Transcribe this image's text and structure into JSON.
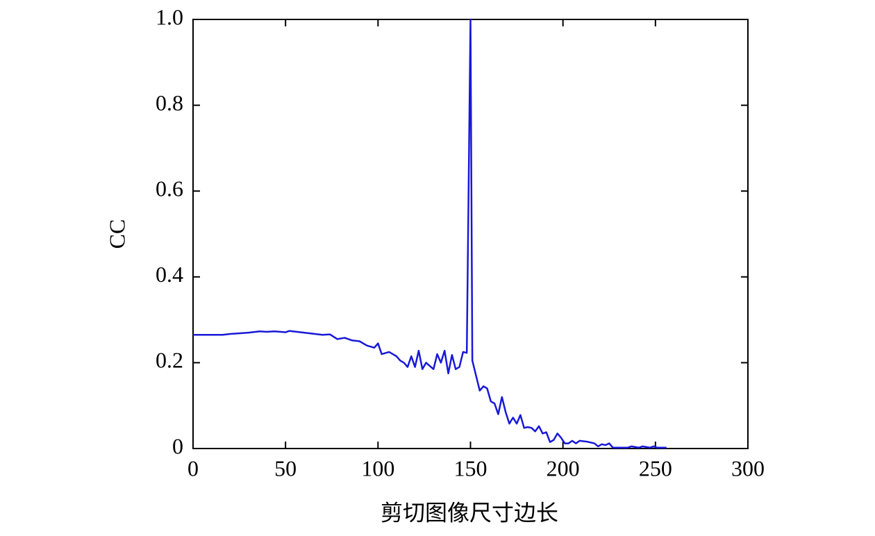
{
  "chart_data": {
    "type": "line",
    "x_label": "剪切图像尺寸边长",
    "y_label": "CC",
    "xlim": [
      0,
      300
    ],
    "xticks": [
      0,
      50,
      100,
      150,
      200,
      250,
      300
    ],
    "ylim": [
      0,
      1
    ],
    "yticks": [
      0,
      0.2,
      0.4,
      0.6,
      0.8,
      {
        "value": 1,
        "label": "1.0"
      }
    ],
    "x": [
      0,
      8,
      16,
      20,
      30,
      36,
      40,
      44,
      50,
      52,
      60,
      70,
      74,
      78,
      82,
      86,
      90,
      94,
      98,
      100,
      102,
      106,
      110,
      112,
      114,
      116,
      118,
      120,
      122,
      124,
      126,
      130,
      132,
      134,
      136,
      138,
      140,
      142,
      144,
      146,
      148,
      150,
      151,
      153,
      155,
      157,
      159,
      161,
      163,
      165,
      167,
      169,
      171,
      173,
      175,
      177,
      179,
      181,
      183,
      185,
      187,
      189,
      191,
      193,
      195,
      197,
      199,
      201,
      203,
      205,
      207,
      209,
      213,
      217,
      219,
      221,
      223,
      225,
      227,
      235,
      237,
      241,
      243,
      247,
      249,
      251,
      256
    ],
    "series": [
      {
        "color": "#1818d8",
        "values": [
          0.265,
          0.265,
          0.265,
          0.267,
          0.27,
          0.273,
          0.272,
          0.273,
          0.271,
          0.274,
          0.27,
          0.265,
          0.266,
          0.255,
          0.258,
          0.252,
          0.25,
          0.24,
          0.235,
          0.245,
          0.22,
          0.225,
          0.215,
          0.205,
          0.2,
          0.19,
          0.215,
          0.19,
          0.228,
          0.185,
          0.2,
          0.185,
          0.22,
          0.2,
          0.228,
          0.175,
          0.218,
          0.185,
          0.19,
          0.225,
          0.223,
          1.0,
          0.205,
          0.17,
          0.135,
          0.145,
          0.14,
          0.11,
          0.105,
          0.08,
          0.12,
          0.085,
          0.058,
          0.072,
          0.058,
          0.078,
          0.048,
          0.05,
          0.048,
          0.04,
          0.052,
          0.035,
          0.038,
          0.015,
          0.02,
          0.035,
          0.025,
          0.012,
          0.012,
          0.018,
          0.012,
          0.018,
          0.016,
          0.012,
          0.005,
          0.01,
          0.008,
          0.012,
          0.002,
          0.002,
          0.005,
          0.002,
          0.005,
          0.002,
          0.005,
          0.002,
          0.002
        ]
      }
    ]
  }
}
